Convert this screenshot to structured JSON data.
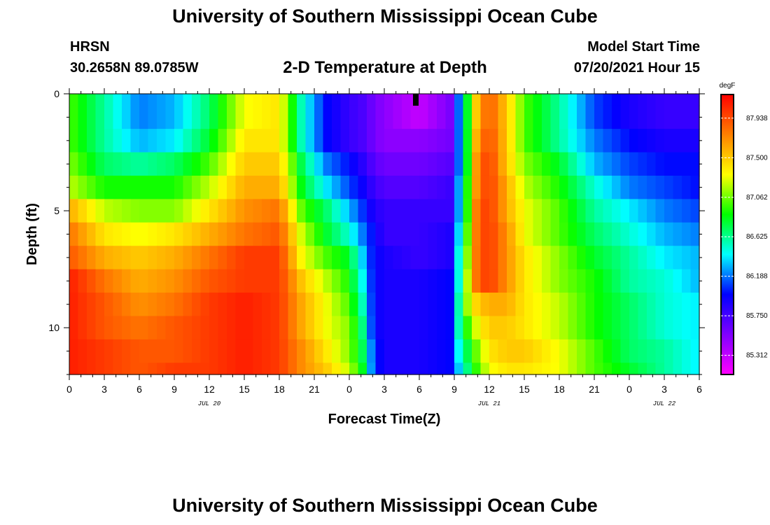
{
  "header": {
    "title": "University of Southern Mississippi Ocean Cube",
    "station": "HRSN",
    "coords": "30.2658N  89.0785W",
    "subtitle": "2-D Temperature at Depth",
    "start_label": "Model Start Time",
    "start_value": "07/20/2021 Hour 15",
    "footer_title": "University of Southern Mississippi Ocean Cube"
  },
  "colors": {
    "palette": [
      "#ff00ff",
      "#8000ff",
      "#0000ff",
      "#00ffff",
      "#00ff00",
      "#ffff00",
      "#ff8000",
      "#ff0000"
    ],
    "marker": "#000000"
  },
  "chart_data": {
    "type": "heatmap",
    "xlabel": "Forecast Time(Z)",
    "ylabel": "Depth (ft)",
    "x_tick_labels": [
      "0",
      "3",
      "6",
      "9",
      "12",
      "15",
      "18",
      "21",
      "0",
      "3",
      "6",
      "9",
      "12",
      "15",
      "18",
      "21",
      "0",
      "3",
      "6"
    ],
    "x_range_hours": [
      0,
      54
    ],
    "date_labels": [
      {
        "text": "JUL 20",
        "hour": 12
      },
      {
        "text": "JUL 21",
        "hour": 36
      },
      {
        "text": "JUL 22",
        "hour": 51
      }
    ],
    "y_tick_labels": [
      "0",
      "5",
      "10"
    ],
    "y_ticks": [
      0,
      5,
      10
    ],
    "y_range": [
      0,
      12
    ],
    "y_inverted": true,
    "colorbar": {
      "unit": "degF",
      "min": 85.1,
      "max": 88.2,
      "labels": [
        "87.938",
        "87.500",
        "87.062",
        "86.625",
        "86.188",
        "85.750",
        "85.312"
      ]
    },
    "marker_hour": 29.7,
    "depths": [
      0,
      0.5,
      1.5,
      2.5,
      3.5,
      4.5,
      5.5,
      6.5,
      7.5,
      8.5,
      9.5,
      10.5,
      11.5,
      12
    ],
    "times": [
      0,
      3,
      6,
      9,
      12,
      15,
      18,
      20,
      22,
      24,
      25.5,
      26,
      27,
      30,
      33,
      33.3,
      34,
      35,
      36,
      37.5,
      39,
      42,
      45,
      48,
      51,
      54
    ],
    "values": [
      [
        87.0,
        86.6,
        86.2,
        86.3,
        86.7,
        87.3,
        87.4,
        86.5,
        86.0,
        85.8,
        85.7,
        85.6,
        85.5,
        85.3,
        85.6,
        86.1,
        86.7,
        87.6,
        87.9,
        87.5,
        87.0,
        86.6,
        86.1,
        85.9,
        85.8,
        85.8
      ],
      [
        87.0,
        86.6,
        86.2,
        86.3,
        86.7,
        87.3,
        87.4,
        86.5,
        86.0,
        85.8,
        85.7,
        85.6,
        85.5,
        85.3,
        85.6,
        86.1,
        86.7,
        87.6,
        87.9,
        87.5,
        87.0,
        86.6,
        86.1,
        85.9,
        85.8,
        85.8
      ],
      [
        87.0,
        86.6,
        86.3,
        86.4,
        86.8,
        87.4,
        87.4,
        86.5,
        86.0,
        85.8,
        85.7,
        85.6,
        85.5,
        85.5,
        85.6,
        86.1,
        86.7,
        87.7,
        87.95,
        87.5,
        87.0,
        86.6,
        86.2,
        86.0,
        85.9,
        85.9
      ],
      [
        87.1,
        86.7,
        86.6,
        86.7,
        87.0,
        87.5,
        87.5,
        86.7,
        86.2,
        86.0,
        85.8,
        85.7,
        85.6,
        85.6,
        85.7,
        86.1,
        86.7,
        87.8,
        88.0,
        87.5,
        87.1,
        86.8,
        86.3,
        86.1,
        86.0,
        86.0
      ],
      [
        87.2,
        86.9,
        86.9,
        86.9,
        87.2,
        87.6,
        87.6,
        86.8,
        86.4,
        86.1,
        85.9,
        85.8,
        85.7,
        85.7,
        85.8,
        86.2,
        86.8,
        87.8,
        88.0,
        87.6,
        87.2,
        86.9,
        86.5,
        86.2,
        86.1,
        86.0
      ],
      [
        87.6,
        87.2,
        87.1,
        87.1,
        87.4,
        87.7,
        87.8,
        87.0,
        86.7,
        86.3,
        86.0,
        85.9,
        85.8,
        85.8,
        85.8,
        86.2,
        86.8,
        87.9,
        88.0,
        87.6,
        87.3,
        87.0,
        86.6,
        86.4,
        86.2,
        86.1
      ],
      [
        87.8,
        87.4,
        87.3,
        87.4,
        87.6,
        87.8,
        87.9,
        87.2,
        86.8,
        86.5,
        86.1,
        86.0,
        85.8,
        85.8,
        85.9,
        86.3,
        86.9,
        87.9,
        88.0,
        87.7,
        87.3,
        87.0,
        86.7,
        86.5,
        86.3,
        86.2
      ],
      [
        87.9,
        87.6,
        87.5,
        87.6,
        87.8,
        88.0,
        88.0,
        87.3,
        87.0,
        86.8,
        86.2,
        86.0,
        85.9,
        85.8,
        85.9,
        86.4,
        87.0,
        87.9,
        88.0,
        87.7,
        87.4,
        87.1,
        86.8,
        86.6,
        86.4,
        86.3
      ],
      [
        88.1,
        87.8,
        87.6,
        87.7,
        87.9,
        88.0,
        88.0,
        87.5,
        87.2,
        86.9,
        86.3,
        86.0,
        85.9,
        85.9,
        86.0,
        86.4,
        87.1,
        87.9,
        88.0,
        87.7,
        87.4,
        87.1,
        86.9,
        86.6,
        86.5,
        86.3
      ],
      [
        88.1,
        87.9,
        87.7,
        87.8,
        88.0,
        88.1,
        88.0,
        87.6,
        87.3,
        87.0,
        86.4,
        86.0,
        85.9,
        85.9,
        86.0,
        86.5,
        87.1,
        87.5,
        87.6,
        87.6,
        87.4,
        87.2,
        86.9,
        86.7,
        86.5,
        86.4
      ],
      [
        88.1,
        87.9,
        87.8,
        87.9,
        88.0,
        88.1,
        88.0,
        87.6,
        87.3,
        87.1,
        86.5,
        86.0,
        85.9,
        85.9,
        86.0,
        86.5,
        86.9,
        87.3,
        87.5,
        87.5,
        87.4,
        87.2,
        86.9,
        86.7,
        86.5,
        86.4
      ],
      [
        88.1,
        88.0,
        87.9,
        87.9,
        88.0,
        88.1,
        88.0,
        87.7,
        87.4,
        87.1,
        86.6,
        86.1,
        85.9,
        85.9,
        86.0,
        86.4,
        86.7,
        87.1,
        87.4,
        87.5,
        87.5,
        87.3,
        87.0,
        86.7,
        86.6,
        86.4
      ],
      [
        88.1,
        88.0,
        87.9,
        88.0,
        88.0,
        88.1,
        88.0,
        87.7,
        87.5,
        87.2,
        86.7,
        86.1,
        85.9,
        85.9,
        86.0,
        86.3,
        86.6,
        87.0,
        87.3,
        87.4,
        87.4,
        87.3,
        87.0,
        86.8,
        86.6,
        86.4
      ],
      [
        88.1,
        88.0,
        87.9,
        88.0,
        88.0,
        88.1,
        88.0,
        87.7,
        87.5,
        87.2,
        86.7,
        86.1,
        85.9,
        85.9,
        86.0,
        86.3,
        86.6,
        87.0,
        87.3,
        87.4,
        87.4,
        87.3,
        87.0,
        86.8,
        86.6,
        86.4
      ]
    ]
  }
}
